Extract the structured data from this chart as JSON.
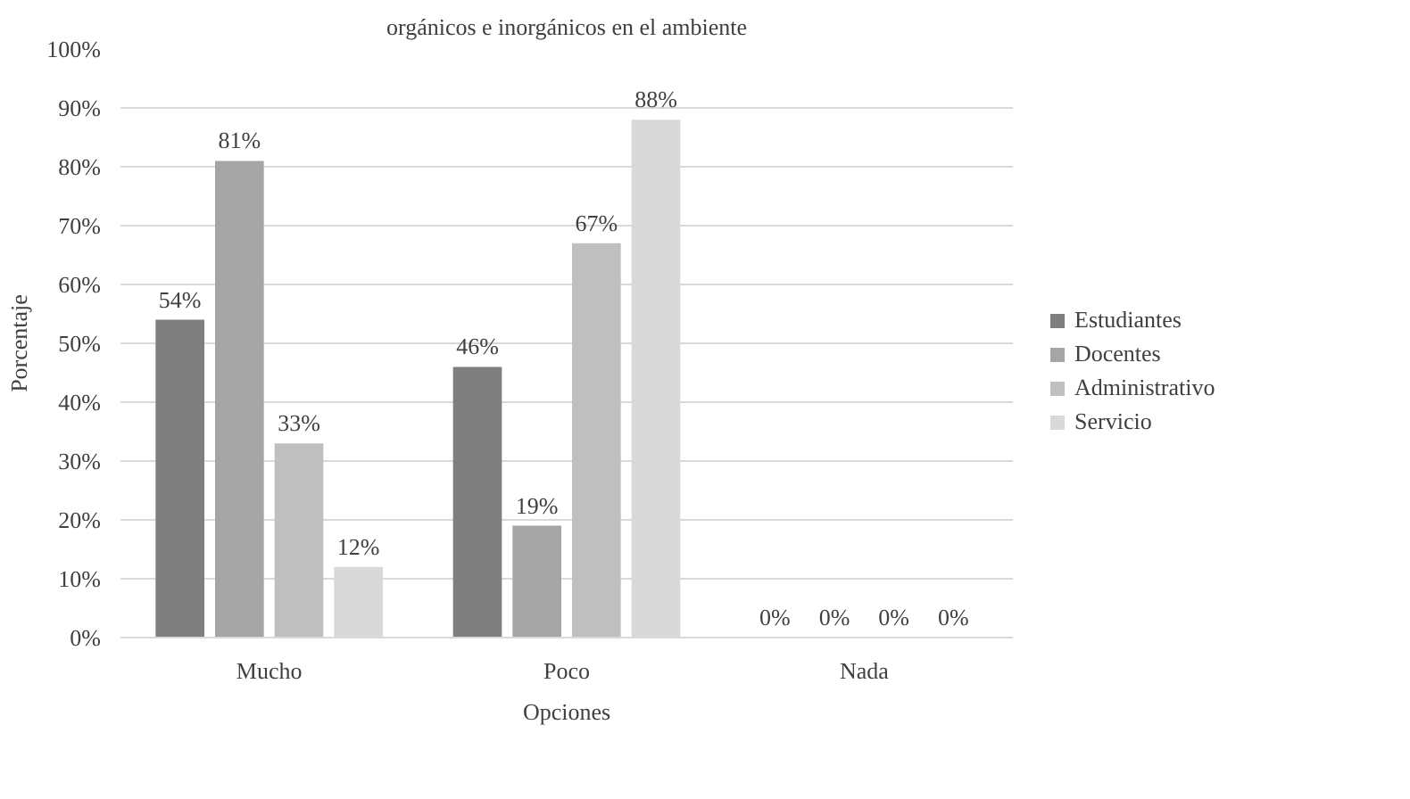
{
  "chart_data": {
    "type": "bar",
    "title": "orgánicos e inorgánicos en el ambiente",
    "xlabel": "Opciones",
    "ylabel": "Porcentaje",
    "categories": [
      "Mucho",
      "Poco",
      "Nada"
    ],
    "series": [
      {
        "name": "Estudiantes",
        "color": "#7f7f7f",
        "values": [
          54,
          46,
          0
        ]
      },
      {
        "name": "Docentes",
        "color": "#a5a5a5",
        "values": [
          81,
          19,
          0
        ]
      },
      {
        "name": "Administrativo",
        "color": "#bfbfbf",
        "values": [
          33,
          67,
          0
        ]
      },
      {
        "name": "Servicio",
        "color": "#d9d9d9",
        "values": [
          12,
          88,
          0
        ]
      }
    ],
    "ylim": [
      0,
      100
    ],
    "yticks": [
      {
        "value": 0,
        "label": "0%"
      },
      {
        "value": 10,
        "label": "10%"
      },
      {
        "value": 20,
        "label": "20%"
      },
      {
        "value": 30,
        "label": "30%"
      },
      {
        "value": 40,
        "label": "40%"
      },
      {
        "value": 50,
        "label": "50%"
      },
      {
        "value": 60,
        "label": "60%"
      },
      {
        "value": 70,
        "label": "70%"
      },
      {
        "value": 80,
        "label": "80%"
      },
      {
        "value": 90,
        "label": "90%"
      },
      {
        "value": 100,
        "label": "100%"
      }
    ],
    "value_labels": [
      [
        "54%",
        "46%",
        "0%"
      ],
      [
        "81%",
        "19%",
        "0%"
      ],
      [
        "33%",
        "67%",
        "0%"
      ],
      [
        "12%",
        "88%",
        "0%"
      ]
    ],
    "grid": "y",
    "legend": "right"
  }
}
